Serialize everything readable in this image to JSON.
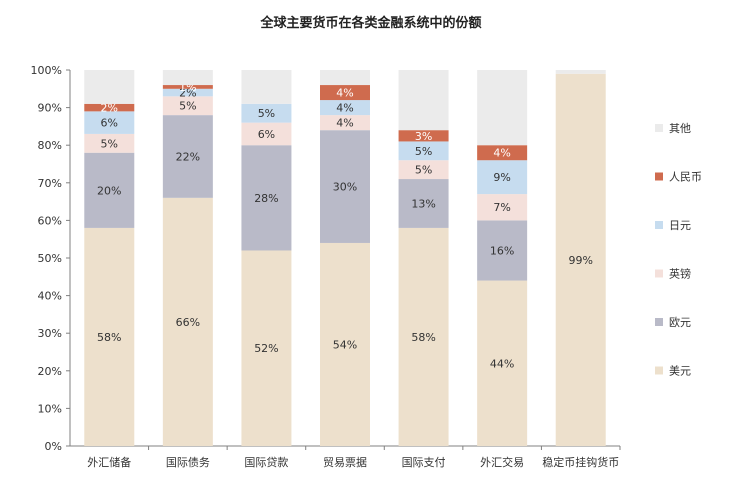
{
  "title": "全球主要货币在各类金融系统中的份额",
  "chart_data": {
    "type": "bar",
    "stacked": true,
    "title": "全球主要货币在各类金融系统中的份额",
    "xlabel": "",
    "ylabel": "",
    "ylim": [
      0,
      100
    ],
    "y_ticks": [
      "0%",
      "10%",
      "20%",
      "30%",
      "40%",
      "50%",
      "60%",
      "70%",
      "80%",
      "90%",
      "100%"
    ],
    "categories": [
      "外汇储备",
      "国际债务",
      "国际贷款",
      "贸易票据",
      "国际支付",
      "外汇交易",
      "稳定币挂钩货币"
    ],
    "series": [
      {
        "name": "美元",
        "color": "#ede0cc",
        "values": [
          58,
          66,
          52,
          54,
          58,
          44,
          99
        ],
        "labels": [
          "58%",
          "66%",
          "52%",
          "54%",
          "58%",
          "44%",
          "99%"
        ]
      },
      {
        "name": "欧元",
        "color": "#b9bac8",
        "values": [
          20,
          22,
          28,
          30,
          13,
          16,
          0
        ],
        "labels": [
          "20%",
          "22%",
          "28%",
          "30%",
          "13%",
          "16%",
          ""
        ]
      },
      {
        "name": "英镑",
        "color": "#f4e0db",
        "values": [
          5,
          5,
          6,
          4,
          5,
          7,
          0
        ],
        "labels": [
          "5%",
          "5%",
          "6%",
          "4%",
          "5%",
          "7%",
          ""
        ]
      },
      {
        "name": "日元",
        "color": "#c6dcef",
        "values": [
          6,
          2,
          5,
          4,
          5,
          9,
          0
        ],
        "labels": [
          "6%",
          "2%",
          "5%",
          "4%",
          "5%",
          "9%",
          ""
        ]
      },
      {
        "name": "人民币",
        "color": "#cf6b4e",
        "values": [
          2,
          1,
          0,
          4,
          3,
          4,
          0
        ],
        "labels": [
          "2%",
          "1%",
          "",
          "4%",
          "3%",
          "4%",
          ""
        ]
      },
      {
        "name": "其他",
        "color": "#ebebeb",
        "values": [
          9,
          4,
          9,
          4,
          16,
          20,
          1
        ],
        "labels": [
          "",
          "",
          "",
          "",
          "",
          "",
          ""
        ]
      }
    ],
    "legend_order": [
      "其他",
      "人民币",
      "日元",
      "英镑",
      "欧元",
      "美元"
    ],
    "legend_position": "right",
    "grid": false
  }
}
